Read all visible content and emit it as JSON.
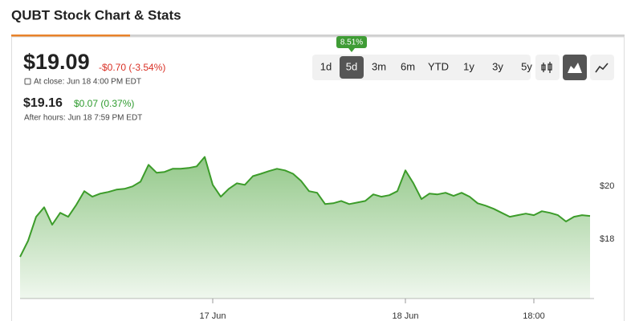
{
  "header": {
    "title": "QUBT Stock Chart & Stats"
  },
  "quote": {
    "price": "$19.09",
    "change": "-$0.70 (-3.54%)",
    "close_note": "At close: Jun 18 4:00 PM EDT",
    "after_price": "$19.16",
    "after_change": "$0.07 (0.37%)",
    "after_note": "After hours: Jun 18 7:59 PM EDT"
  },
  "range": {
    "badge": "8.51%",
    "buttons": [
      "1d",
      "5d",
      "3m",
      "6m",
      "YTD",
      "1y",
      "3y",
      "5y"
    ],
    "active": 1
  },
  "chart_data": {
    "type": "area",
    "color": "#3c9c2a",
    "categories": [
      null,
      null,
      null,
      null,
      null,
      null,
      null,
      null,
      null,
      null,
      null,
      null,
      null,
      null,
      null,
      null,
      null,
      null,
      null,
      null,
      null,
      null,
      null,
      null,
      "17 Jun",
      null,
      null,
      null,
      null,
      null,
      null,
      null,
      null,
      null,
      null,
      null,
      null,
      null,
      null,
      null,
      null,
      null,
      null,
      null,
      null,
      null,
      null,
      null,
      "18 Jun",
      null,
      null,
      null,
      null,
      null,
      null,
      null,
      null,
      null,
      null,
      null,
      null,
      null,
      null,
      null,
      "18:00",
      null,
      null,
      null,
      null,
      null,
      null,
      null
    ],
    "values": [
      17.33,
      17.94,
      18.85,
      19.21,
      18.55,
      19.0,
      18.85,
      19.3,
      19.82,
      19.61,
      19.73,
      19.79,
      19.88,
      19.91,
      20.0,
      20.18,
      20.82,
      20.52,
      20.55,
      20.67,
      20.67,
      20.7,
      20.76,
      21.12,
      20.06,
      19.61,
      19.91,
      20.12,
      20.06,
      20.39,
      20.48,
      20.58,
      20.67,
      20.61,
      20.48,
      20.21,
      19.82,
      19.76,
      19.33,
      19.36,
      19.45,
      19.33,
      19.39,
      19.45,
      19.7,
      19.61,
      19.67,
      19.82,
      20.61,
      20.12,
      19.52,
      19.73,
      19.7,
      19.76,
      19.64,
      19.76,
      19.61,
      19.36,
      19.27,
      19.15,
      19.0,
      18.85,
      18.91,
      18.97,
      18.91,
      19.06,
      19.0,
      18.91,
      18.67,
      18.85,
      18.91,
      18.88
    ],
    "ylim": [
      15.75,
      22.2
    ],
    "yticks": [
      {
        "value": 18,
        "label": "$18"
      },
      {
        "value": 20,
        "label": "$20"
      }
    ]
  }
}
